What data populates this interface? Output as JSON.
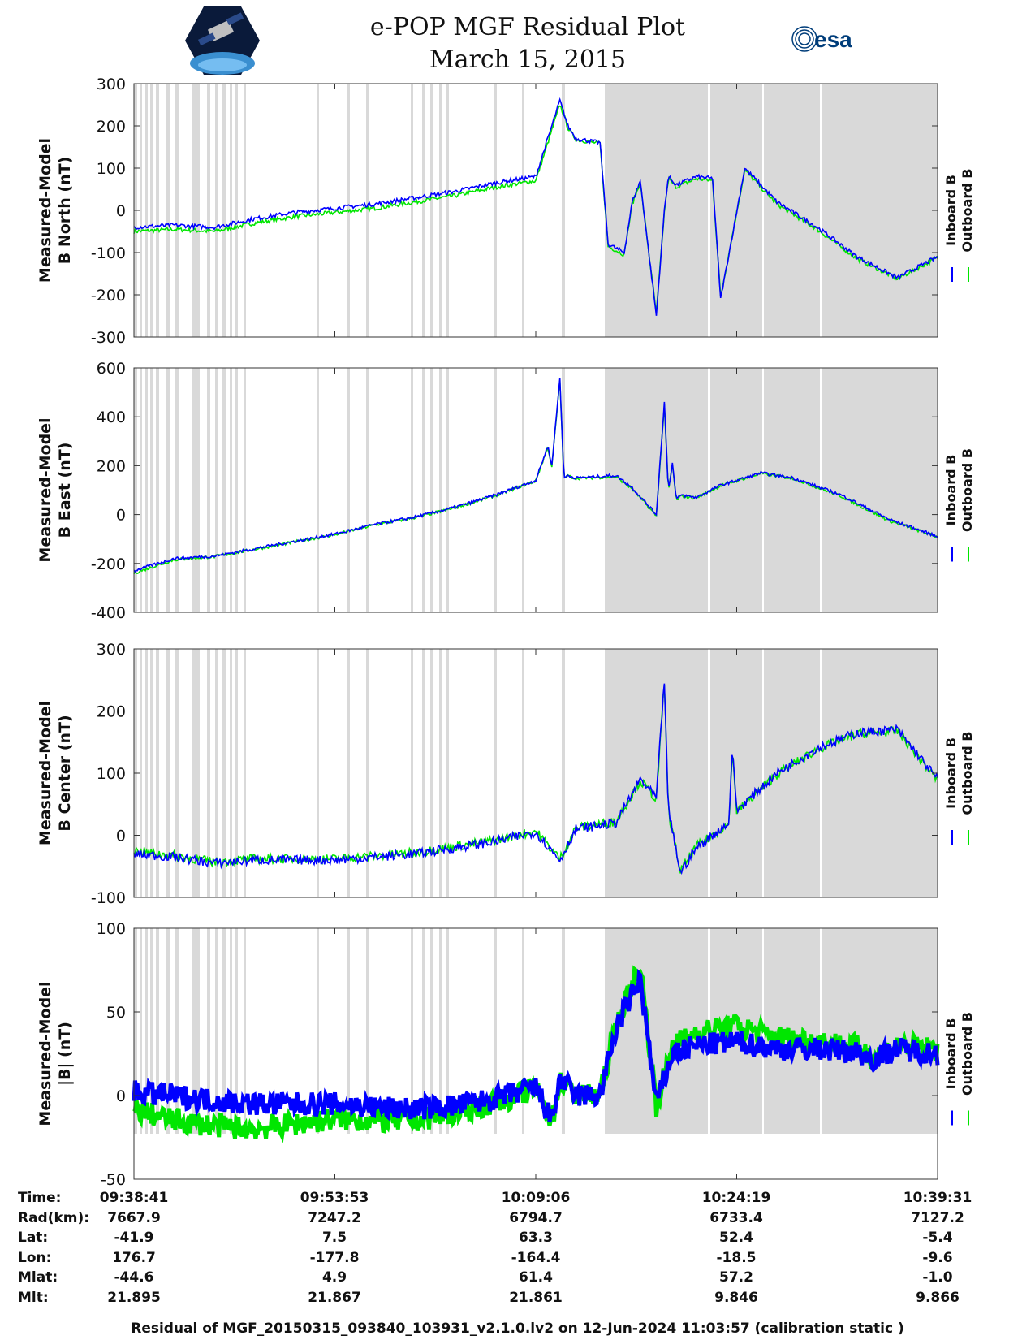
{
  "title_line1": "e-POP MGF Residual Plot",
  "title_line2": "March 15, 2015",
  "logos": {
    "left_icon": "cassiope-satellite-logo",
    "right_text": "esa"
  },
  "legend": {
    "inboard_label": "Inboard B",
    "outboard_label": "Outboard B",
    "inboard_color": "#0000ff",
    "outboard_color": "#00e600"
  },
  "gap_color": "#d9d9d9",
  "chart_data": [
    {
      "type": "line",
      "ylabel_line1": "Measured-Model",
      "ylabel_line2": "B North (nT)",
      "ylim": [
        -300,
        300
      ],
      "yticks": [
        "300",
        "200",
        "100",
        "0",
        "-100",
        "-200",
        "-300"
      ],
      "x": [
        0,
        0.05,
        0.1,
        0.15,
        0.2,
        0.25,
        0.3,
        0.35,
        0.4,
        0.45,
        0.5,
        0.53,
        0.535,
        0.54,
        0.55,
        0.58,
        0.59,
        0.61,
        0.62,
        0.63,
        0.65,
        0.66,
        0.665,
        0.675,
        0.7,
        0.72,
        0.73,
        0.76,
        0.77,
        0.8,
        0.85,
        0.9,
        0.95,
        1.0
      ],
      "series": [
        {
          "name": "Inboard B",
          "values": [
            -40,
            -35,
            -40,
            -20,
            -5,
            5,
            15,
            30,
            45,
            65,
            80,
            260,
            230,
            200,
            170,
            160,
            -80,
            -100,
            20,
            70,
            -250,
            0,
            80,
            60,
            80,
            75,
            -210,
            100,
            80,
            20,
            -40,
            -110,
            -160,
            -110
          ]
        },
        {
          "name": "Outboard B",
          "values": [
            -50,
            -45,
            -50,
            -30,
            -15,
            -5,
            5,
            20,
            35,
            55,
            70,
            250,
            225,
            195,
            168,
            158,
            -85,
            -105,
            15,
            65,
            -245,
            -5,
            75,
            55,
            75,
            70,
            -205,
            95,
            75,
            15,
            -45,
            -115,
            -162,
            -112
          ]
        }
      ]
    },
    {
      "type": "line",
      "ylabel_line1": "Measured-Model",
      "ylabel_line2": "B East (nT)",
      "ylim": [
        -400,
        600
      ],
      "yticks": [
        "600",
        "400",
        "200",
        "0",
        "-200",
        "-400"
      ],
      "x": [
        0,
        0.05,
        0.1,
        0.15,
        0.2,
        0.25,
        0.3,
        0.35,
        0.4,
        0.45,
        0.5,
        0.515,
        0.52,
        0.53,
        0.535,
        0.54,
        0.55,
        0.6,
        0.62,
        0.65,
        0.66,
        0.665,
        0.67,
        0.675,
        0.68,
        0.7,
        0.73,
        0.78,
        0.82,
        0.88,
        0.94,
        1.0
      ],
      "series": [
        {
          "name": "Inboard B",
          "values": [
            -230,
            -180,
            -170,
            -140,
            -110,
            -80,
            -40,
            -10,
            30,
            80,
            140,
            280,
            200,
            560,
            150,
            160,
            150,
            160,
            110,
            0,
            460,
            100,
            210,
            60,
            80,
            70,
            120,
            170,
            150,
            80,
            -20,
            -90
          ]
        },
        {
          "name": "Outboard B",
          "values": [
            -240,
            -185,
            -172,
            -142,
            -112,
            -82,
            -42,
            -12,
            28,
            78,
            138,
            275,
            195,
            550,
            148,
            158,
            148,
            155,
            105,
            -5,
            450,
            95,
            205,
            55,
            75,
            68,
            118,
            168,
            148,
            75,
            -25,
            -92
          ]
        }
      ]
    },
    {
      "type": "line",
      "ylabel_line1": "Measured-Model",
      "ylabel_line2": "B Center (nT)",
      "ylim": [
        -100,
        300
      ],
      "yticks": [
        "300",
        "200",
        "100",
        "0",
        "-100"
      ],
      "x": [
        0,
        0.05,
        0.1,
        0.15,
        0.2,
        0.25,
        0.3,
        0.35,
        0.4,
        0.45,
        0.5,
        0.53,
        0.55,
        0.6,
        0.63,
        0.65,
        0.66,
        0.665,
        0.68,
        0.7,
        0.74,
        0.745,
        0.75,
        0.8,
        0.85,
        0.9,
        0.95,
        1.0
      ],
      "series": [
        {
          "name": "Inboard B",
          "values": [
            -30,
            -35,
            -45,
            -40,
            -40,
            -40,
            -35,
            -30,
            -20,
            -10,
            5,
            -40,
            10,
            20,
            90,
            60,
            250,
            40,
            -60,
            -20,
            20,
            140,
            40,
            100,
            140,
            165,
            170,
            90
          ]
        },
        {
          "name": "Outboard B",
          "values": [
            -25,
            -33,
            -43,
            -38,
            -38,
            -38,
            -33,
            -28,
            -18,
            -8,
            7,
            -38,
            12,
            22,
            88,
            58,
            245,
            38,
            -58,
            -18,
            18,
            135,
            38,
            98,
            138,
            163,
            168,
            88
          ]
        }
      ]
    },
    {
      "type": "line",
      "ylabel_line1": "Measured-Model",
      "ylabel_line2": "|B| (nT)",
      "ylim": [
        -50,
        100
      ],
      "yticks": [
        "100",
        "50",
        "0",
        "-50"
      ],
      "x": [
        0,
        0.05,
        0.1,
        0.15,
        0.2,
        0.25,
        0.3,
        0.35,
        0.4,
        0.45,
        0.5,
        0.52,
        0.53,
        0.54,
        0.55,
        0.58,
        0.6,
        0.63,
        0.65,
        0.67,
        0.7,
        0.75,
        0.8,
        0.85,
        0.9,
        0.92,
        0.95,
        1.0
      ],
      "series": [
        {
          "name": "Inboard B",
          "values": [
            2,
            0,
            -3,
            -5,
            -5,
            -5,
            -7,
            -8,
            -6,
            -2,
            5,
            -15,
            10,
            5,
            0,
            0,
            40,
            70,
            -5,
            25,
            30,
            32,
            28,
            28,
            26,
            22,
            28,
            25
          ]
        },
        {
          "name": "Outboard B",
          "values": [
            -8,
            -15,
            -18,
            -20,
            -17,
            -14,
            -15,
            -15,
            -10,
            -4,
            4,
            -16,
            9,
            5,
            0,
            0,
            42,
            78,
            -6,
            30,
            38,
            42,
            35,
            33,
            29,
            23,
            30,
            28
          ]
        }
      ]
    }
  ],
  "ephemeris": {
    "labels": [
      "Time:",
      "Rad(km):",
      "Lat:",
      "Lon:",
      "Mlat:",
      "Mlt:"
    ],
    "columns": [
      [
        "09:38:41",
        "7667.9",
        "-41.9",
        "176.7",
        "-44.6",
        "21.895"
      ],
      [
        "09:53:53",
        "7247.2",
        "7.5",
        "-177.8",
        "4.9",
        "21.867"
      ],
      [
        "10:09:06",
        "6794.7",
        "63.3",
        "-164.4",
        "61.4",
        "21.861"
      ],
      [
        "10:24:19",
        "6733.4",
        "52.4",
        "-18.5",
        "57.2",
        "9.846"
      ],
      [
        "10:39:31",
        "7127.2",
        "-5.4",
        "-9.6",
        "-1.0",
        "9.866"
      ]
    ]
  },
  "footer": "Residual of MGF_20150315_093840_103931_v2.1.0.lv2 on 12-Jun-2024 11:03:57 (calibration static )"
}
